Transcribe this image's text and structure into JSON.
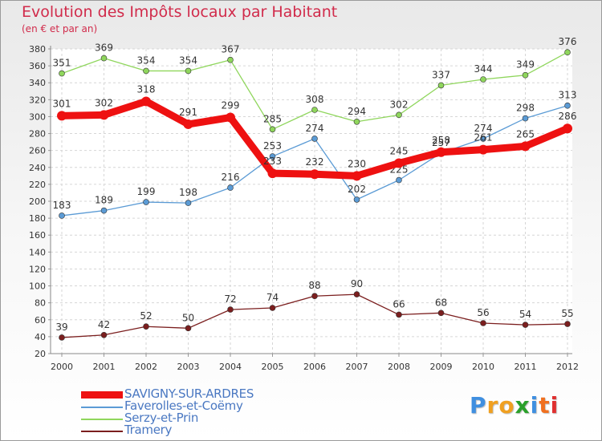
{
  "chart_data": {
    "type": "line",
    "title": "Evolution des Impôts locaux par Habitant",
    "subtitle": "(en € et par an)",
    "xlabel": "",
    "ylabel": "",
    "ylim": [
      20,
      380
    ],
    "y_ticks": [
      20,
      40,
      60,
      80,
      100,
      120,
      140,
      160,
      180,
      200,
      220,
      240,
      260,
      280,
      300,
      320,
      340,
      360,
      380
    ],
    "grid": true,
    "legend_position": "bottom-left",
    "x": [
      "2000",
      "2001",
      "2002",
      "2003",
      "2004",
      "2005",
      "2006",
      "2007",
      "2008",
      "2009",
      "2010",
      "2011",
      "2012"
    ],
    "series": [
      {
        "name": "Serzy-et-Prin",
        "color": "#8fd65c",
        "values": [
          351,
          369,
          354,
          354,
          367,
          285,
          308,
          294,
          302,
          337,
          344,
          349,
          376
        ],
        "labels": [
          "351",
          "369",
          "354",
          "354",
          "367",
          "285",
          "308",
          "294",
          "302",
          "337",
          "344",
          "349",
          "376"
        ]
      },
      {
        "name": "Faverolles-et-Coëmy",
        "color": "#5b9bd5",
        "values": [
          183,
          189,
          199,
          198,
          216,
          253,
          274,
          202,
          225,
          257,
          274,
          298,
          313
        ],
        "labels": [
          "183",
          "189",
          "199",
          "198",
          "216",
          "253",
          "274",
          "202",
          "225",
          "257",
          "274",
          "298",
          "313"
        ]
      },
      {
        "name": "Tramery",
        "color": "#7b1e1e",
        "values": [
          39,
          42,
          52,
          50,
          72,
          74,
          88,
          90,
          66,
          68,
          56,
          54,
          55
        ],
        "labels": [
          "39",
          "42",
          "52",
          "50",
          "72",
          "74",
          "88",
          "90",
          "66",
          "68",
          "56",
          "54",
          "55"
        ]
      },
      {
        "name": "SAVIGNY-SUR-ARDRES",
        "color": "#ee1111",
        "values": [
          301,
          302,
          318,
          291,
          299,
          233,
          232,
          230,
          245,
          258,
          261,
          265,
          286
        ],
        "labels": [
          "301",
          "302",
          "318",
          "291",
          "299",
          "233",
          "232",
          "230",
          "245",
          "258",
          "261",
          "265",
          "286"
        ]
      }
    ],
    "legend_order": [
      "SAVIGNY-SUR-ARDRES",
      "Faverolles-et-Coëmy",
      "Serzy-et-Prin",
      "Tramery"
    ]
  },
  "logo": {
    "letters": [
      "P",
      "r",
      "o",
      "x",
      "i",
      "t",
      "i"
    ],
    "colors": [
      "#3f8fe0",
      "#f0a020",
      "#f0a020",
      "#2aa02a",
      "#3f8fe0",
      "#f07020",
      "#e03030"
    ]
  }
}
